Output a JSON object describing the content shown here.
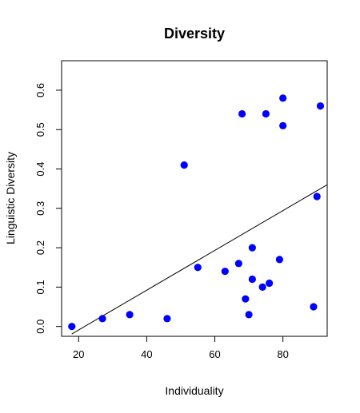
{
  "chart_data": {
    "type": "scatter",
    "title": "Diversity",
    "xlabel": "Individuality",
    "ylabel": "Linguistic Diversity",
    "xlim": [
      15,
      93
    ],
    "ylim": [
      -0.025,
      0.675
    ],
    "xticks": [
      20,
      40,
      60,
      80
    ],
    "yticks": [
      0.0,
      0.1,
      0.2,
      0.3,
      0.4,
      0.5,
      0.6
    ],
    "ytick_labels": [
      "0.0",
      "0.1",
      "0.2",
      "0.3",
      "0.4",
      "0.5",
      "0.6"
    ],
    "grid": false,
    "point_color": "#0000ff",
    "points": [
      {
        "x": 18,
        "y": 0.0
      },
      {
        "x": 27,
        "y": 0.02
      },
      {
        "x": 35,
        "y": 0.03
      },
      {
        "x": 46,
        "y": 0.02
      },
      {
        "x": 51,
        "y": 0.41
      },
      {
        "x": 55,
        "y": 0.15
      },
      {
        "x": 63,
        "y": 0.14
      },
      {
        "x": 67,
        "y": 0.16
      },
      {
        "x": 68,
        "y": 0.54
      },
      {
        "x": 69,
        "y": 0.07
      },
      {
        "x": 70,
        "y": 0.03
      },
      {
        "x": 71,
        "y": 0.2
      },
      {
        "x": 71,
        "y": 0.12
      },
      {
        "x": 74,
        "y": 0.1
      },
      {
        "x": 75,
        "y": 0.54
      },
      {
        "x": 76,
        "y": 0.11
      },
      {
        "x": 79,
        "y": 0.17
      },
      {
        "x": 80,
        "y": 0.58
      },
      {
        "x": 80,
        "y": 0.51
      },
      {
        "x": 89,
        "y": 0.05
      },
      {
        "x": 90,
        "y": 0.33
      },
      {
        "x": 91,
        "y": 0.56
      }
    ],
    "regression_line": {
      "x": [
        18,
        93
      ],
      "y": [
        -0.019,
        0.36
      ]
    }
  }
}
